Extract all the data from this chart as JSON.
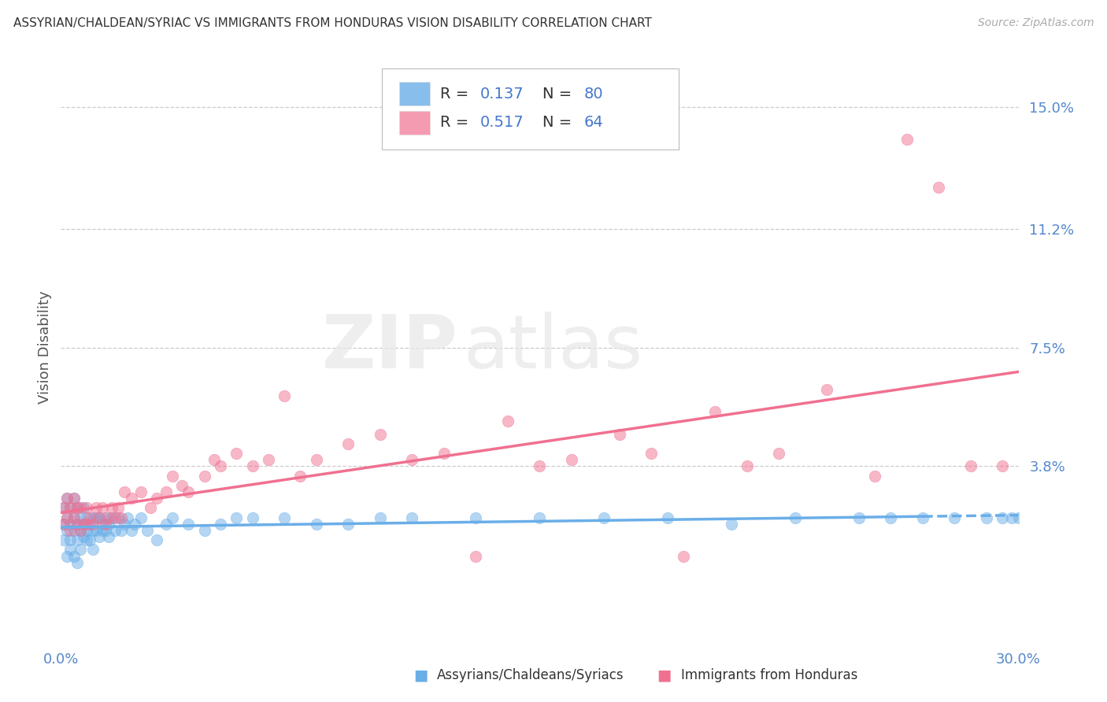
{
  "title": "ASSYRIAN/CHALDEAN/SYRIAC VS IMMIGRANTS FROM HONDURAS VISION DISABILITY CORRELATION CHART",
  "source": "Source: ZipAtlas.com",
  "ylabel": "Vision Disability",
  "ytick_labels": [
    "15.0%",
    "11.2%",
    "7.5%",
    "3.8%"
  ],
  "ytick_values": [
    0.15,
    0.112,
    0.075,
    0.038
  ],
  "xlim": [
    0.0,
    0.3
  ],
  "ylim": [
    -0.018,
    0.168
  ],
  "legend1_r": "0.137",
  "legend1_n": "80",
  "legend2_r": "0.517",
  "legend2_n": "64",
  "color_blue": "#6aaee8",
  "color_pink": "#f07090",
  "color_legend_text": "#333333",
  "color_legend_value": "#4477cc",
  "color_axis_labels": "#5588cc",
  "watermark_text": "ZIP",
  "watermark_text2": "atlas",
  "blue_scatter_x": [
    0.001,
    0.001,
    0.001,
    0.002,
    0.002,
    0.002,
    0.002,
    0.003,
    0.003,
    0.003,
    0.003,
    0.004,
    0.004,
    0.004,
    0.004,
    0.005,
    0.005,
    0.005,
    0.005,
    0.006,
    0.006,
    0.006,
    0.007,
    0.007,
    0.007,
    0.008,
    0.008,
    0.008,
    0.009,
    0.009,
    0.01,
    0.01,
    0.01,
    0.011,
    0.011,
    0.012,
    0.012,
    0.013,
    0.013,
    0.014,
    0.014,
    0.015,
    0.015,
    0.016,
    0.017,
    0.018,
    0.019,
    0.02,
    0.021,
    0.022,
    0.023,
    0.025,
    0.027,
    0.03,
    0.033,
    0.035,
    0.04,
    0.045,
    0.05,
    0.055,
    0.06,
    0.07,
    0.08,
    0.09,
    0.1,
    0.11,
    0.13,
    0.15,
    0.17,
    0.19,
    0.21,
    0.23,
    0.25,
    0.26,
    0.27,
    0.28,
    0.29,
    0.295,
    0.298,
    0.3
  ],
  "blue_scatter_y": [
    0.02,
    0.025,
    0.015,
    0.018,
    0.022,
    0.01,
    0.028,
    0.015,
    0.02,
    0.025,
    0.012,
    0.018,
    0.022,
    0.028,
    0.01,
    0.015,
    0.02,
    0.025,
    0.008,
    0.018,
    0.022,
    0.012,
    0.016,
    0.02,
    0.025,
    0.015,
    0.018,
    0.022,
    0.015,
    0.02,
    0.018,
    0.022,
    0.012,
    0.018,
    0.022,
    0.016,
    0.022,
    0.018,
    0.02,
    0.018,
    0.022,
    0.016,
    0.02,
    0.022,
    0.018,
    0.022,
    0.018,
    0.02,
    0.022,
    0.018,
    0.02,
    0.022,
    0.018,
    0.015,
    0.02,
    0.022,
    0.02,
    0.018,
    0.02,
    0.022,
    0.022,
    0.022,
    0.02,
    0.02,
    0.022,
    0.022,
    0.022,
    0.022,
    0.022,
    0.022,
    0.02,
    0.022,
    0.022,
    0.022,
    0.022,
    0.022,
    0.022,
    0.022,
    0.022,
    0.022
  ],
  "pink_scatter_x": [
    0.001,
    0.001,
    0.002,
    0.002,
    0.003,
    0.003,
    0.004,
    0.004,
    0.005,
    0.005,
    0.006,
    0.006,
    0.007,
    0.008,
    0.008,
    0.009,
    0.01,
    0.011,
    0.012,
    0.013,
    0.014,
    0.015,
    0.016,
    0.017,
    0.018,
    0.019,
    0.02,
    0.022,
    0.025,
    0.028,
    0.03,
    0.033,
    0.035,
    0.038,
    0.04,
    0.045,
    0.048,
    0.05,
    0.055,
    0.06,
    0.065,
    0.07,
    0.075,
    0.08,
    0.09,
    0.1,
    0.11,
    0.12,
    0.13,
    0.14,
    0.15,
    0.16,
    0.175,
    0.185,
    0.195,
    0.205,
    0.215,
    0.225,
    0.24,
    0.255,
    0.265,
    0.275,
    0.285,
    0.295
  ],
  "pink_scatter_y": [
    0.025,
    0.02,
    0.022,
    0.028,
    0.018,
    0.025,
    0.022,
    0.028,
    0.02,
    0.025,
    0.018,
    0.025,
    0.02,
    0.025,
    0.02,
    0.022,
    0.02,
    0.025,
    0.022,
    0.025,
    0.02,
    0.022,
    0.025,
    0.022,
    0.025,
    0.022,
    0.03,
    0.028,
    0.03,
    0.025,
    0.028,
    0.03,
    0.035,
    0.032,
    0.03,
    0.035,
    0.04,
    0.038,
    0.042,
    0.038,
    0.04,
    0.06,
    0.035,
    0.04,
    0.045,
    0.048,
    0.04,
    0.042,
    0.01,
    0.052,
    0.038,
    0.04,
    0.048,
    0.042,
    0.01,
    0.055,
    0.038,
    0.042,
    0.062,
    0.035,
    0.14,
    0.125,
    0.038,
    0.038
  ]
}
